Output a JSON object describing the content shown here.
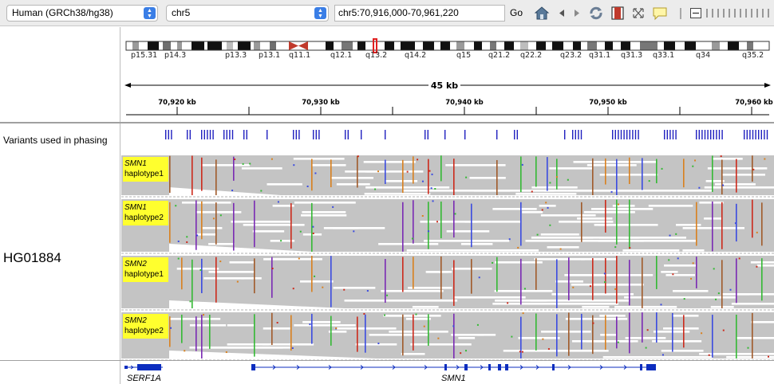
{
  "toolbar": {
    "genome": "Human (GRCh38/hg38)",
    "chromosome": "chr5",
    "locus": "chr5:70,916,000-70,961,220",
    "go_label": "Go",
    "icons": [
      "home-icon",
      "back-arrow-icon",
      "forward-arrow-icon",
      "refresh-icon",
      "region-of-interest-icon",
      "resize-icon",
      "popup-info-icon",
      "zoom-out-icon",
      "zoom-ruler-icon"
    ]
  },
  "ideogram": {
    "bands": [
      "p15.31",
      "p14.3",
      "p13.3",
      "p13.1",
      "q11.1",
      "q12.1",
      "q13.2",
      "q14.2",
      "q15",
      "q21.2",
      "q22.2",
      "q23.2",
      "q31.1",
      "q31.3",
      "q33.1",
      "q34",
      "q35.2"
    ]
  },
  "ruler": {
    "span_label": "45 kb",
    "tick_labels": [
      "70,920 kb",
      "70,930 kb",
      "70,940 kb",
      "70,950 kb",
      "70,960 kb"
    ]
  },
  "tracks": {
    "variants_label": "Variants used in phasing",
    "sample": "HG01884",
    "haplotypes": [
      {
        "gene": "SMN1",
        "haplotype": "haplotype1"
      },
      {
        "gene": "SMN1",
        "haplotype": "haplotype2"
      },
      {
        "gene": "SMN2",
        "haplotype": "haplotype1"
      },
      {
        "gene": "SMN2",
        "haplotype": "haplotype2"
      }
    ]
  },
  "genes": [
    {
      "name": "SERF1A"
    },
    {
      "name": "SMN1"
    }
  ],
  "colors": {
    "read_gray": "#c4c4c4",
    "variant_blue": "#1f1fbf",
    "label_yellow": "#ffff2e",
    "mismatch_red": "#cc2a1c",
    "mismatch_green": "#34b934",
    "mismatch_orange": "#d9801e",
    "mismatch_blue": "#3b4be0",
    "gene_blue": "#0c2dbf"
  }
}
